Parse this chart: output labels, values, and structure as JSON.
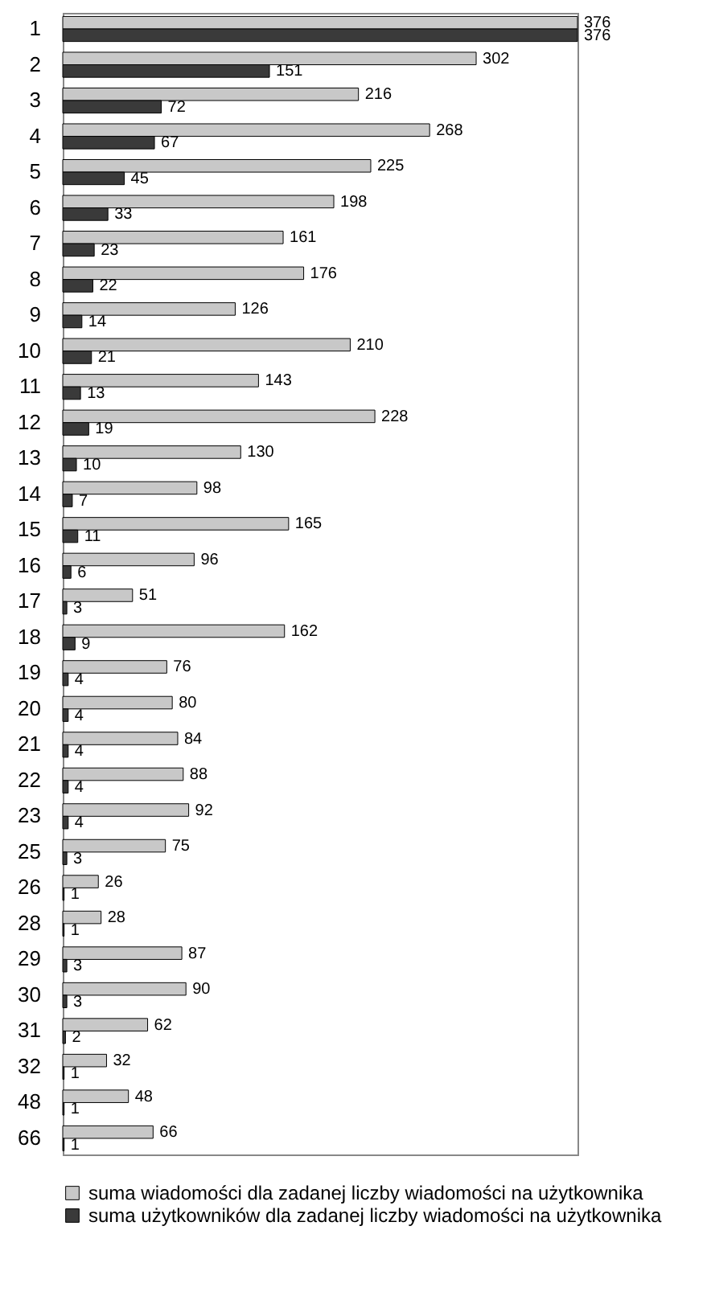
{
  "chart_data": {
    "type": "bar",
    "orientation": "horizontal",
    "data_labels": true,
    "tick_labels": "y",
    "legend": "bottom",
    "categories": [
      "1",
      "2",
      "3",
      "4",
      "5",
      "6",
      "7",
      "8",
      "9",
      "10",
      "11",
      "12",
      "13",
      "14",
      "15",
      "16",
      "17",
      "18",
      "19",
      "20",
      "21",
      "22",
      "23",
      "25",
      "26",
      "28",
      "29",
      "30",
      "31",
      "32",
      "48",
      "66"
    ],
    "series": [
      {
        "name": "suma wiadomości dla zadanej liczby wiadomości na użytkownika",
        "color": "#c8c8c8",
        "values": [
          376,
          302,
          216,
          268,
          225,
          198,
          161,
          176,
          126,
          210,
          143,
          228,
          130,
          98,
          165,
          96,
          51,
          162,
          76,
          80,
          84,
          88,
          92,
          75,
          26,
          28,
          87,
          90,
          62,
          32,
          48,
          66
        ]
      },
      {
        "name": "suma użytkowników dla zadanej liczby wiadomości na użytkownika",
        "color": "#3a3a3a",
        "values": [
          376,
          151,
          72,
          67,
          45,
          33,
          23,
          22,
          14,
          21,
          13,
          19,
          10,
          7,
          11,
          6,
          3,
          9,
          4,
          4,
          4,
          4,
          4,
          3,
          1,
          1,
          3,
          3,
          2,
          1,
          1,
          1
        ]
      }
    ]
  }
}
